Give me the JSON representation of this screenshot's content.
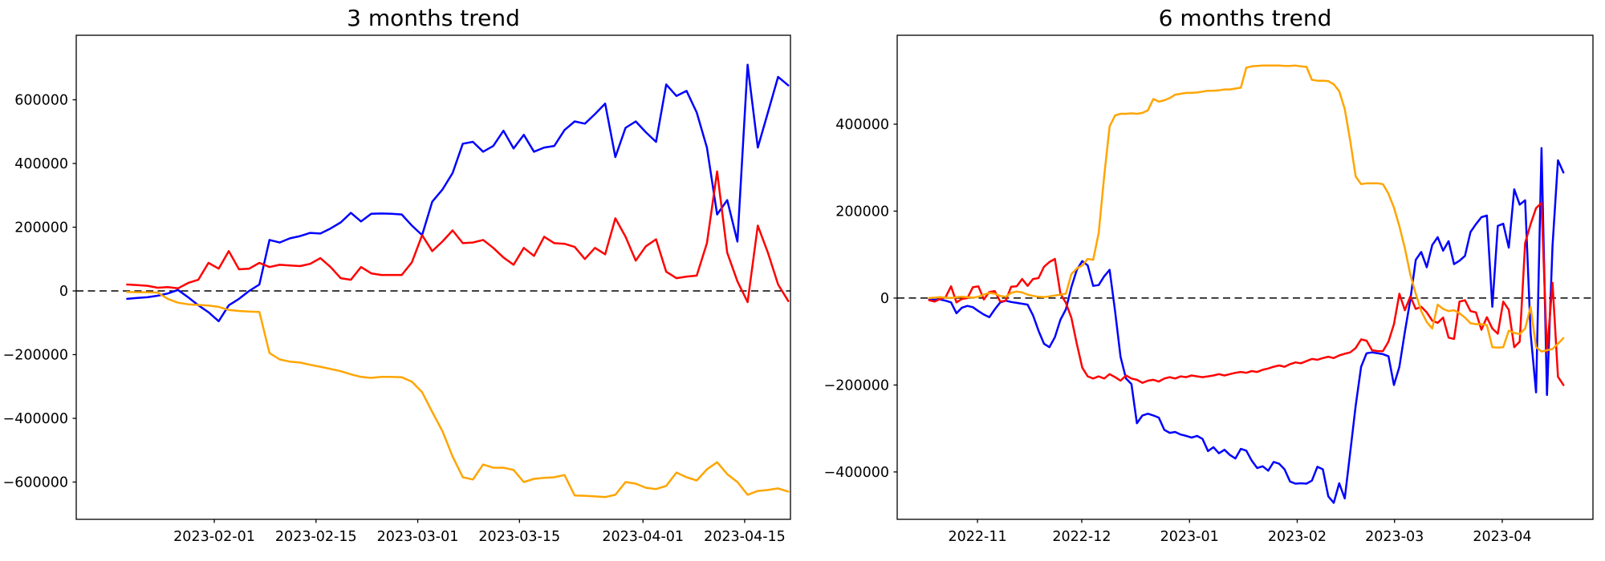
{
  "page": {
    "background": "#ffffff",
    "text_color": "#000000"
  },
  "chart_data": [
    {
      "type": "line",
      "title": "3 months trend",
      "xlabel": "",
      "ylabel": "",
      "grid": false,
      "legend": "none",
      "zero_line": {
        "style": "dashed",
        "color": "#000000"
      },
      "ylim": [
        -717000,
        802500
      ],
      "yticks": [
        {
          "value": 600000,
          "label": "600000"
        },
        {
          "value": 400000,
          "label": "400000"
        },
        {
          "value": 200000,
          "label": "200000"
        },
        {
          "value": 0,
          "label": "0"
        },
        {
          "value": -200000,
          "label": "−200000"
        },
        {
          "value": -400000,
          "label": "−400000"
        },
        {
          "value": -600000,
          "label": "−600000"
        }
      ],
      "xlim_days": [
        0,
        98.3
      ],
      "xticks": [
        {
          "day": 19,
          "label": "2023-02-01"
        },
        {
          "day": 33,
          "label": "2023-02-15"
        },
        {
          "day": 47,
          "label": "2023-03-01"
        },
        {
          "day": 61,
          "label": "2023-03-15"
        },
        {
          "day": 78,
          "label": "2023-04-01"
        },
        {
          "day": 92,
          "label": "2023-04-15"
        }
      ],
      "series": [
        {
          "name": "blue",
          "color": "#0000ff",
          "x_start_day": 7,
          "x_end_day": 98,
          "values_k": [
            -25,
            -22,
            -20,
            -15,
            -8,
            3,
            -20,
            -45,
            -67,
            -95,
            -45,
            -25,
            0,
            20,
            160,
            152,
            165,
            172,
            182,
            180,
            196,
            215,
            245,
            218,
            242,
            243,
            242,
            240,
            205,
            175,
            280,
            318,
            370,
            462,
            468,
            437,
            455,
            503,
            447,
            490,
            437,
            450,
            455,
            505,
            532,
            525,
            555,
            588,
            420,
            512,
            532,
            498,
            468,
            648,
            612,
            628,
            560,
            450,
            240,
            285,
            155,
            710,
            450,
            560,
            672,
            645
          ]
        },
        {
          "name": "red",
          "color": "#ff0000",
          "x_start_day": 7,
          "x_end_day": 98,
          "values_k": [
            20,
            18,
            16,
            10,
            12,
            8,
            25,
            35,
            88,
            70,
            125,
            68,
            70,
            88,
            75,
            82,
            80,
            78,
            85,
            103,
            75,
            40,
            35,
            75,
            55,
            50,
            50,
            50,
            90,
            175,
            125,
            155,
            190,
            150,
            152,
            160,
            135,
            105,
            82,
            135,
            110,
            170,
            150,
            148,
            138,
            100,
            135,
            115,
            228,
            170,
            95,
            140,
            162,
            60,
            40,
            45,
            48,
            150,
            375,
            120,
            30,
            -35,
            205,
            120,
            20,
            -32
          ]
        },
        {
          "name": "orange",
          "color": "#ffa500",
          "x_start_day": 7,
          "x_end_day": 98,
          "values_k": [
            -3,
            -4,
            -4,
            -5,
            -25,
            -37,
            -42,
            -44,
            -46,
            -50,
            -60,
            -63,
            -65,
            -66,
            -195,
            -215,
            -222,
            -225,
            -232,
            -238,
            -245,
            -252,
            -262,
            -270,
            -273,
            -270,
            -270,
            -271,
            -285,
            -318,
            -380,
            -440,
            -520,
            -585,
            -592,
            -545,
            -555,
            -555,
            -562,
            -600,
            -590,
            -587,
            -585,
            -578,
            -642,
            -643,
            -645,
            -647,
            -640,
            -600,
            -605,
            -618,
            -622,
            -612,
            -570,
            -585,
            -595,
            -560,
            -538,
            -575,
            -600,
            -640,
            -628,
            -625,
            -620,
            -630
          ]
        }
      ]
    },
    {
      "type": "line",
      "title": "6 months trend",
      "xlabel": "",
      "ylabel": "",
      "grid": false,
      "legend": "none",
      "zero_line": {
        "style": "dashed",
        "color": "#000000"
      },
      "ylim": [
        -509000,
        604600
      ],
      "yticks": [
        {
          "value": 400000,
          "label": "400000"
        },
        {
          "value": 200000,
          "label": "200000"
        },
        {
          "value": 0,
          "label": "0"
        },
        {
          "value": -200000,
          "label": "−200000"
        },
        {
          "value": -400000,
          "label": "−400000"
        }
      ],
      "xlim_days": [
        7.9,
        208.1
      ],
      "xticks": [
        {
          "day": 31,
          "label": "2022-11"
        },
        {
          "day": 61,
          "label": "2022-12"
        },
        {
          "day": 92,
          "label": "2023-01"
        },
        {
          "day": 123,
          "label": "2023-02"
        },
        {
          "day": 151,
          "label": "2023-03"
        },
        {
          "day": 182,
          "label": "2023-04"
        }
      ],
      "series": [
        {
          "name": "blue",
          "color": "#0000ff",
          "x_start_day": 17.1,
          "x_end_day": 199.6,
          "values_k": [
            -2,
            -4,
            -3,
            -6,
            -10,
            -35,
            -22,
            -18,
            -21,
            -30,
            -38,
            -44,
            -26,
            -10,
            -6,
            -9,
            -11,
            -13,
            -15,
            -40,
            -75,
            -105,
            -113,
            -90,
            -50,
            -26,
            25,
            65,
            85,
            75,
            28,
            30,
            50,
            65,
            -30,
            -135,
            -185,
            -198,
            -288,
            -270,
            -266,
            -270,
            -275,
            -303,
            -310,
            -308,
            -314,
            -317,
            -321,
            -317,
            -324,
            -352,
            -343,
            -357,
            -349,
            -361,
            -369,
            -347,
            -351,
            -374,
            -391,
            -387,
            -397,
            -377,
            -381,
            -394,
            -422,
            -427,
            -426,
            -427,
            -420,
            -388,
            -394,
            -456,
            -471,
            -426,
            -461,
            -355,
            -248,
            -158,
            -127,
            -125,
            -127,
            -129,
            -134,
            -200,
            -158,
            -78,
            -4,
            88,
            106,
            71,
            122,
            140,
            109,
            131,
            78,
            86,
            97,
            152,
            170,
            186,
            190,
            -20,
            166,
            171,
            116,
            250,
            215,
            225,
            -81,
            -217,
            345,
            -223,
            120,
            317,
            289
          ]
        },
        {
          "name": "red",
          "color": "#ff0000",
          "x_start_day": 17.1,
          "x_end_day": 199.6,
          "values_k": [
            -5,
            -8,
            -2,
            2,
            27,
            -10,
            -2,
            0,
            25,
            27,
            -3,
            14,
            16,
            -8,
            -6,
            26,
            27,
            44,
            28,
            44,
            46,
            72,
            83,
            90,
            10,
            -11,
            -45,
            -105,
            -160,
            -180,
            -185,
            -180,
            -185,
            -175,
            -182,
            -190,
            -178,
            -185,
            -188,
            -195,
            -190,
            -188,
            -192,
            -185,
            -182,
            -185,
            -180,
            -182,
            -178,
            -180,
            -182,
            -180,
            -178,
            -175,
            -178,
            -175,
            -172,
            -170,
            -172,
            -168,
            -170,
            -165,
            -162,
            -158,
            -155,
            -158,
            -152,
            -148,
            -150,
            -145,
            -140,
            -142,
            -138,
            -135,
            -138,
            -132,
            -128,
            -125,
            -115,
            -95,
            -98,
            -120,
            -122,
            -122,
            -100,
            -60,
            10,
            -28,
            4,
            -25,
            -20,
            -33,
            -52,
            -57,
            -45,
            -91,
            -94,
            -8,
            -5,
            -30,
            -33,
            -73,
            -44,
            -70,
            -82,
            -8,
            -27,
            -113,
            -100,
            127,
            170,
            207,
            219,
            -125,
            35,
            -181,
            -200
          ]
        },
        {
          "name": "orange",
          "color": "#ffa500",
          "x_start_day": 17.1,
          "x_end_day": 199.6,
          "values_k": [
            0,
            1,
            2,
            1,
            0,
            2,
            3,
            2,
            1,
            3,
            8,
            12,
            10,
            5,
            3,
            12,
            15,
            13,
            8,
            5,
            3,
            2,
            4,
            6,
            8,
            10,
            55,
            68,
            75,
            90,
            88,
            150,
            280,
            395,
            420,
            424,
            424,
            425,
            424,
            426,
            432,
            458,
            452,
            455,
            460,
            468,
            470,
            472,
            472,
            473,
            475,
            477,
            477,
            478,
            480,
            480,
            482,
            484,
            530,
            533,
            534,
            535,
            535,
            535,
            535,
            534,
            534,
            535,
            533,
            532,
            502,
            500,
            500,
            499,
            492,
            476,
            435,
            362,
            280,
            262,
            264,
            264,
            264,
            262,
            240,
            208,
            165,
            115,
            54,
            10,
            -30,
            -55,
            -70,
            -15,
            -25,
            -30,
            -28,
            -35,
            -45,
            -58,
            -60,
            -60,
            -62,
            -113,
            -114,
            -113,
            -75,
            -80,
            -83,
            -70,
            -20,
            -113,
            -123,
            -120,
            -117,
            -105,
            -92
          ]
        }
      ]
    }
  ]
}
